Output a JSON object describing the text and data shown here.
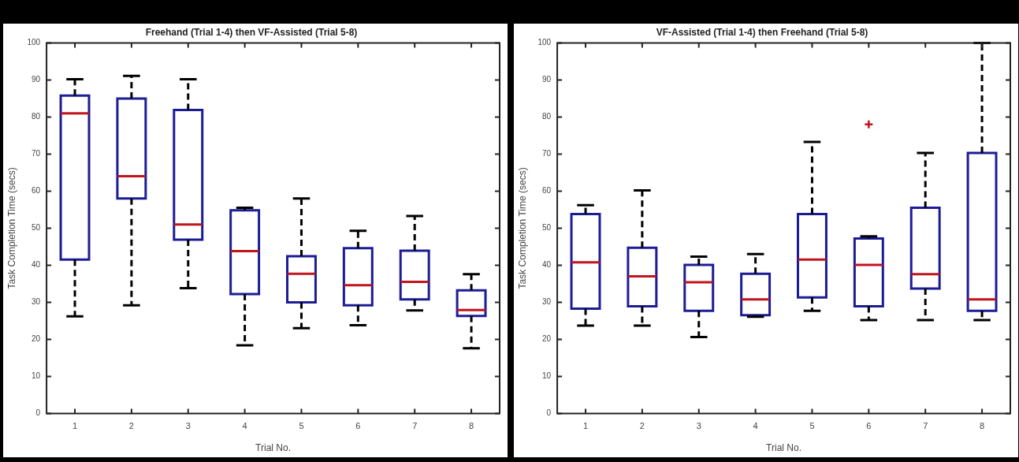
{
  "chart_data": [
    {
      "type": "box",
      "title": "Freehand (Trial 1-4) then VF-Assisted (Trial 5-8)",
      "xlabel": "Trial No.",
      "ylabel": "Task Completion Time (secs)",
      "categories": [
        "1",
        "2",
        "3",
        "4",
        "5",
        "6",
        "7",
        "8"
      ],
      "ylim": [
        0,
        100
      ],
      "yticks": [
        0,
        10,
        20,
        30,
        40,
        50,
        60,
        70,
        80,
        90,
        100
      ],
      "grid": false,
      "series": [
        {
          "color": "#1c1c96",
          "boxes": [
            {
              "low": 26.2,
              "q1": 41.5,
              "median": 81,
              "q3": 85.8,
              "high": 90.2
            },
            {
              "low": 29.2,
              "q1": 58,
              "median": 64,
              "q3": 85,
              "high": 91.1
            },
            {
              "low": 33.8,
              "q1": 46.9,
              "median": 51,
              "q3": 81.9,
              "high": 90.2
            },
            {
              "low": 18.4,
              "q1": 32.2,
              "median": 43.8,
              "q3": 54.8,
              "high": 55.5
            },
            {
              "low": 23,
              "q1": 30,
              "median": 37.7,
              "q3": 42.4,
              "high": 58
            },
            {
              "low": 23.8,
              "q1": 29.2,
              "median": 34.6,
              "q3": 44.6,
              "high": 49.3
            },
            {
              "low": 27.8,
              "q1": 30.8,
              "median": 35.5,
              "q3": 43.9,
              "high": 53.3
            },
            {
              "low": 17.6,
              "q1": 26.3,
              "median": 27.9,
              "q3": 33.2,
              "high": 37.6
            }
          ]
        }
      ]
    },
    {
      "type": "box",
      "title": "VF-Assisted (Trial 1-4) then Freehand (Trial 5-8)",
      "xlabel": "Trial No.",
      "ylabel": "Task Completion Time (secs)",
      "categories": [
        "1",
        "2",
        "3",
        "4",
        "5",
        "6",
        "7",
        "8"
      ],
      "ylim": [
        0,
        100
      ],
      "yticks": [
        0,
        10,
        20,
        30,
        40,
        50,
        60,
        70,
        80,
        90,
        100
      ],
      "grid": false,
      "series": [
        {
          "color": "#1c1c96",
          "boxes": [
            {
              "low": 23.7,
              "q1": 28.3,
              "median": 40.8,
              "q3": 53.8,
              "high": 56.2
            },
            {
              "low": 23.7,
              "q1": 28.9,
              "median": 37,
              "q3": 44.7,
              "high": 60.2
            },
            {
              "low": 20.6,
              "q1": 27.7,
              "median": 35.4,
              "q3": 40.1,
              "high": 42.3
            },
            {
              "low": 26.1,
              "q1": 26.5,
              "median": 30.8,
              "q3": 37.7,
              "high": 43
            },
            {
              "low": 27.7,
              "q1": 31.3,
              "median": 41.5,
              "q3": 53.8,
              "high": 73.3
            },
            {
              "low": 25.2,
              "q1": 28.9,
              "median": 40.1,
              "q3": 47.2,
              "high": 47.8,
              "outliers": [
                78
              ]
            },
            {
              "low": 25.2,
              "q1": 33.7,
              "median": 37.6,
              "q3": 55.5,
              "high": 70.3
            },
            {
              "low": 25.2,
              "q1": 27.7,
              "median": 30.8,
              "q3": 70.3,
              "high": 100
            }
          ]
        }
      ]
    }
  ]
}
